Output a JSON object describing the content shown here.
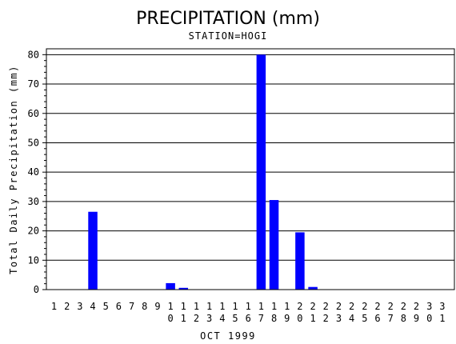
{
  "chart_data": {
    "type": "bar",
    "title": "PRECIPITATION (mm)",
    "subtitle": "STATION=HOGI",
    "xlabel": "OCT 1999",
    "ylabel": "Total Daily Precipitation (mm)",
    "ylim": [
      0,
      82
    ],
    "yticks": [
      0,
      10,
      20,
      30,
      40,
      50,
      60,
      70,
      80
    ],
    "grid": true,
    "colors": {
      "bar": "#0000ff",
      "grid": "#000000",
      "axis": "#000000"
    },
    "categories": [
      "1",
      "2",
      "3",
      "4",
      "5",
      "6",
      "7",
      "8",
      "9",
      "10",
      "11",
      "12",
      "13",
      "14",
      "15",
      "16",
      "17",
      "18",
      "19",
      "20",
      "21",
      "22",
      "23",
      "24",
      "25",
      "26",
      "27",
      "28",
      "29",
      "30",
      "31"
    ],
    "values": [
      0,
      0,
      0,
      26.5,
      0,
      0,
      0,
      0,
      0,
      2.2,
      0.6,
      0,
      0,
      0,
      0,
      0,
      80,
      30.5,
      0,
      19.5,
      0.9,
      0,
      0,
      0,
      0,
      0,
      0,
      0,
      0,
      0,
      0
    ]
  }
}
